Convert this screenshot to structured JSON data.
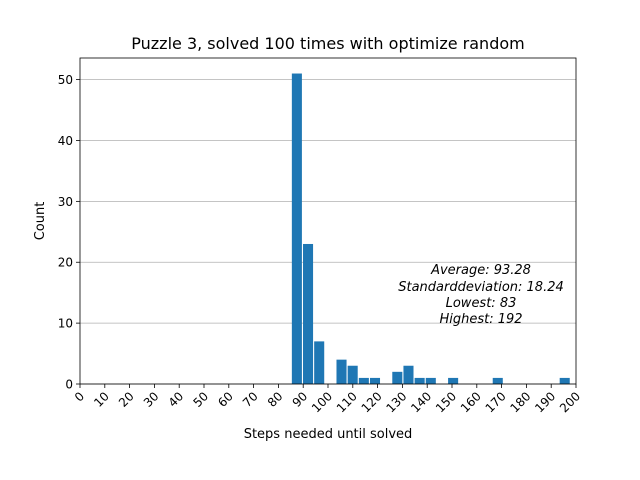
{
  "chart_data": {
    "type": "bar",
    "title": "Puzzle 3, solved 100 times with optimize random",
    "xlabel": "Steps needed until solved",
    "ylabel": "Count",
    "xlim": [
      0,
      200
    ],
    "ylim": [
      0,
      53.55
    ],
    "bin_width": 4.5,
    "grid": "y",
    "x_ticks": [
      0,
      10,
      20,
      30,
      40,
      50,
      60,
      70,
      80,
      90,
      100,
      110,
      120,
      130,
      140,
      150,
      160,
      170,
      180,
      190,
      200
    ],
    "y_ticks": [
      0,
      10,
      20,
      30,
      40,
      50
    ],
    "bar_color": "#1f77b4",
    "bins": [
      {
        "x": 85.2,
        "count": 51
      },
      {
        "x": 89.7,
        "count": 23
      },
      {
        "x": 94.2,
        "count": 7
      },
      {
        "x": 103.2,
        "count": 4
      },
      {
        "x": 107.7,
        "count": 3
      },
      {
        "x": 112.2,
        "count": 1
      },
      {
        "x": 116.7,
        "count": 1
      },
      {
        "x": 125.7,
        "count": 2
      },
      {
        "x": 130.2,
        "count": 3
      },
      {
        "x": 134.7,
        "count": 1
      },
      {
        "x": 139.2,
        "count": 1
      },
      {
        "x": 148.2,
        "count": 1
      },
      {
        "x": 166.2,
        "count": 1
      },
      {
        "x": 193.2,
        "count": 1
      }
    ],
    "annotation": [
      "Average: 93.28",
      "Standarddeviation: 18.24",
      "Lowest: 83",
      "Highest: 192"
    ]
  }
}
